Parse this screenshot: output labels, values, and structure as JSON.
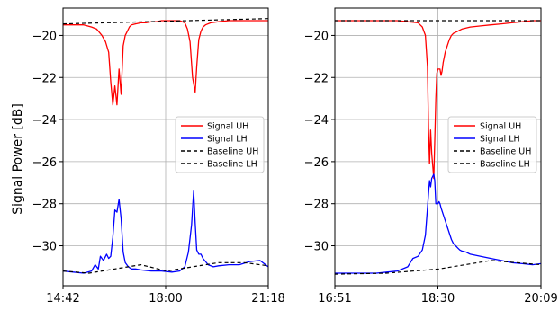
{
  "figure": {
    "ylabel": "Signal Power [dB]"
  },
  "colors": {
    "signal_uh": "#ff0000",
    "signal_lh": "#0000ff",
    "baseline": "#000000",
    "grid": "#b0b0b0"
  },
  "chart_data": [
    {
      "type": "line",
      "xlabel": "",
      "ylabel": "Signal Power [dB]",
      "x_ticks": [
        {
          "label": "14:42",
          "t": 0
        },
        {
          "label": "18:00",
          "t": 198
        },
        {
          "label": "21:18",
          "t": 396
        }
      ],
      "xlim": [
        0,
        396
      ],
      "ylim": [
        -31.9,
        -18.7
      ],
      "y_ticks": [
        -20,
        -22,
        -24,
        -26,
        -28,
        -30
      ],
      "y_tick_labels": [
        "−20",
        "−22",
        "−24",
        "−26",
        "−28",
        "−30"
      ],
      "grid": true,
      "legend_position": "center-right",
      "legend": [
        "Signal UH",
        "Signal LH",
        "Baseline UH",
        "Baseline LH"
      ],
      "series": [
        {
          "name": "Signal UH",
          "x": [
            0,
            20,
            40,
            55,
            65,
            75,
            82,
            88,
            92,
            96,
            100,
            104,
            108,
            112,
            116,
            120,
            124,
            128,
            132,
            140,
            150,
            160,
            170,
            180,
            190,
            198,
            205,
            215,
            225,
            235,
            240,
            245,
            250,
            255,
            258,
            262,
            266,
            270,
            275,
            285,
            300,
            320,
            340,
            360,
            380,
            396
          ],
          "values": [
            -19.5,
            -19.5,
            -19.5,
            -19.6,
            -19.7,
            -20.0,
            -20.3,
            -20.8,
            -22.2,
            -23.3,
            -22.4,
            -23.3,
            -21.6,
            -22.8,
            -20.5,
            -20.0,
            -19.8,
            -19.6,
            -19.5,
            -19.45,
            -19.4,
            -19.4,
            -19.35,
            -19.35,
            -19.3,
            -19.3,
            -19.3,
            -19.3,
            -19.3,
            -19.4,
            -19.7,
            -20.3,
            -22.0,
            -22.7,
            -21.5,
            -20.2,
            -19.8,
            -19.6,
            -19.5,
            -19.4,
            -19.35,
            -19.3,
            -19.3,
            -19.3,
            -19.3,
            -19.3
          ]
        },
        {
          "name": "Signal LH",
          "x": [
            0,
            20,
            40,
            55,
            62,
            68,
            72,
            78,
            84,
            88,
            92,
            96,
            100,
            104,
            108,
            112,
            116,
            120,
            126,
            132,
            140,
            150,
            170,
            190,
            210,
            225,
            235,
            242,
            248,
            252,
            255,
            258,
            262,
            266,
            270,
            280,
            290,
            300,
            320,
            340,
            360,
            380,
            396
          ],
          "values": [
            -31.2,
            -31.25,
            -31.3,
            -31.2,
            -30.9,
            -31.1,
            -30.5,
            -30.7,
            -30.4,
            -30.6,
            -30.5,
            -29.6,
            -28.3,
            -28.4,
            -27.8,
            -28.7,
            -30.3,
            -30.8,
            -31.0,
            -31.1,
            -31.1,
            -31.15,
            -31.2,
            -31.2,
            -31.25,
            -31.2,
            -31.0,
            -30.3,
            -29.0,
            -27.4,
            -28.9,
            -30.2,
            -30.4,
            -30.4,
            -30.6,
            -30.9,
            -31.0,
            -30.95,
            -30.9,
            -30.9,
            -30.75,
            -30.7,
            -31.0
          ]
        },
        {
          "name": "Baseline UH",
          "x": [
            0,
            396
          ],
          "values": [
            -19.45,
            -19.2
          ]
        },
        {
          "name": "Baseline LH",
          "x": [
            0,
            50,
            100,
            150,
            200,
            250,
            300,
            350,
            396
          ],
          "values": [
            -31.2,
            -31.3,
            -31.1,
            -30.9,
            -31.2,
            -31.0,
            -30.8,
            -30.8,
            -30.95
          ]
        }
      ]
    },
    {
      "type": "line",
      "xlabel": "",
      "ylabel": "",
      "x_ticks": [
        {
          "label": "16:51",
          "t": 0
        },
        {
          "label": "18:30",
          "t": 99
        },
        {
          "label": "20:09",
          "t": 198
        }
      ],
      "xlim": [
        0,
        198
      ],
      "ylim": [
        -31.9,
        -18.7
      ],
      "y_ticks": [
        -20,
        -22,
        -24,
        -26,
        -28,
        -30
      ],
      "y_tick_labels": [
        "−20",
        "−22",
        "−24",
        "−26",
        "−28",
        "−30"
      ],
      "grid": true,
      "legend_position": "center-right",
      "legend": [
        "Signal UH",
        "Signal LH",
        "Baseline UH",
        "Baseline LH"
      ],
      "series": [
        {
          "name": "Signal UH",
          "x": [
            0,
            20,
            40,
            60,
            70,
            80,
            84,
            87,
            89,
            90,
            91,
            92,
            93,
            95,
            96,
            97,
            98,
            99,
            100,
            101,
            102,
            103,
            104,
            106,
            108,
            110,
            112,
            114,
            116,
            118,
            120,
            122,
            126,
            130,
            140,
            150,
            160,
            170,
            180,
            190,
            198
          ],
          "values": [
            -19.3,
            -19.3,
            -19.3,
            -19.3,
            -19.35,
            -19.4,
            -19.6,
            -20.0,
            -21.5,
            -24.5,
            -26.1,
            -24.5,
            -25.6,
            -26.8,
            -25.0,
            -23.0,
            -21.8,
            -21.6,
            -21.6,
            -21.6,
            -21.9,
            -21.7,
            -21.3,
            -20.8,
            -20.5,
            -20.2,
            -20.0,
            -19.9,
            -19.85,
            -19.8,
            -19.75,
            -19.7,
            -19.65,
            -19.6,
            -19.55,
            -19.5,
            -19.45,
            -19.4,
            -19.35,
            -19.3,
            -19.3
          ]
        },
        {
          "name": "Signal LH",
          "x": [
            0,
            20,
            40,
            50,
            60,
            70,
            75,
            80,
            84,
            87,
            89,
            90,
            91,
            92,
            93,
            95,
            96,
            97,
            98,
            99,
            100,
            101,
            102,
            104,
            106,
            108,
            110,
            112,
            114,
            116,
            118,
            120,
            122,
            126,
            130,
            140,
            150,
            160,
            170,
            180,
            190,
            198
          ],
          "values": [
            -31.3,
            -31.3,
            -31.3,
            -31.25,
            -31.2,
            -31.0,
            -30.6,
            -30.5,
            -30.2,
            -29.5,
            -28.2,
            -27.5,
            -26.9,
            -27.2,
            -26.8,
            -26.6,
            -26.9,
            -28.0,
            -28.0,
            -28.0,
            -27.9,
            -28.0,
            -28.2,
            -28.5,
            -28.8,
            -29.1,
            -29.4,
            -29.7,
            -29.9,
            -30.0,
            -30.1,
            -30.2,
            -30.25,
            -30.3,
            -30.4,
            -30.5,
            -30.6,
            -30.7,
            -30.8,
            -30.85,
            -30.9,
            -30.85
          ]
        },
        {
          "name": "Baseline UH",
          "x": [
            0,
            198
          ],
          "values": [
            -19.3,
            -19.3
          ]
        },
        {
          "name": "Baseline LH",
          "x": [
            0,
            50,
            100,
            150,
            198
          ],
          "values": [
            -31.35,
            -31.3,
            -31.1,
            -30.7,
            -30.9
          ]
        }
      ]
    }
  ]
}
